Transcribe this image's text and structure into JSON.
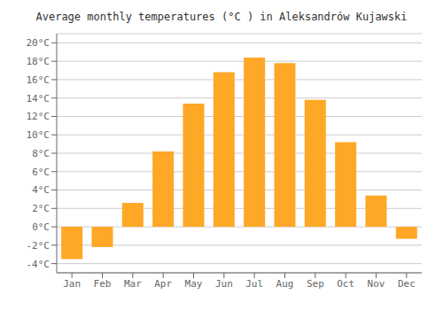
{
  "chart_data": {
    "type": "bar",
    "title": "Average monthly temperatures (°C ) in Aleksandrów Kujawski",
    "categories": [
      "Jan",
      "Feb",
      "Mar",
      "Apr",
      "May",
      "Jun",
      "Jul",
      "Aug",
      "Sep",
      "Oct",
      "Nov",
      "Dec"
    ],
    "values": [
      -3.5,
      -2.2,
      2.6,
      8.2,
      13.4,
      16.8,
      18.4,
      17.8,
      13.8,
      9.2,
      3.4,
      -1.3
    ],
    "color": "#FFA726",
    "ylim": [
      -5,
      21
    ],
    "yticks": [
      {
        "value": -4,
        "label": "-4°C"
      },
      {
        "value": -2,
        "label": "-2°C"
      },
      {
        "value": 0,
        "label": "0°C"
      },
      {
        "value": 2,
        "label": "2°C"
      },
      {
        "value": 4,
        "label": "4°C"
      },
      {
        "value": 6,
        "label": "6°C"
      },
      {
        "value": 8,
        "label": "8°C"
      },
      {
        "value": 10,
        "label": "10°C"
      },
      {
        "value": 12,
        "label": "12°C"
      },
      {
        "value": 14,
        "label": "14°C"
      },
      {
        "value": 16,
        "label": "16°C"
      },
      {
        "value": 18,
        "label": "18°C"
      },
      {
        "value": 20,
        "label": "20°C"
      }
    ],
    "grid": true
  }
}
